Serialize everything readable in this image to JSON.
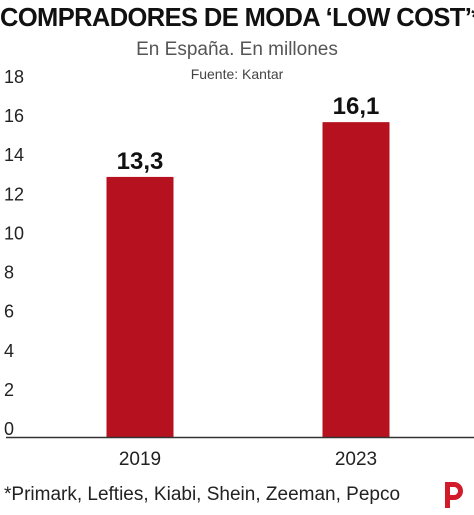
{
  "header": {
    "title": "COMPRADORES DE MODA ‘LOW COST’*",
    "subtitle": "En España. En millones",
    "source": "Fuente: Kantar"
  },
  "footer": {
    "note": "*Primark, Lefties, Kiabi, Shein, Zeeman, Pepco",
    "logo_icon": "publication-logo-icon"
  },
  "colors": {
    "bar": "#b5111e",
    "logo": "#d11a2a",
    "axis": "#333333",
    "text": "#222222"
  },
  "chart_data": {
    "type": "bar",
    "categories": [
      "2019",
      "2023"
    ],
    "values": [
      13.3,
      16.1
    ],
    "value_labels": [
      "13,3",
      "16,1"
    ],
    "ylim": [
      0,
      18
    ],
    "yticks": [
      0,
      2,
      4,
      6,
      8,
      10,
      12,
      14,
      16,
      18
    ],
    "grid": false,
    "title": "COMPRADORES DE MODA ‘LOW COST’*",
    "xlabel": "",
    "ylabel": ""
  }
}
